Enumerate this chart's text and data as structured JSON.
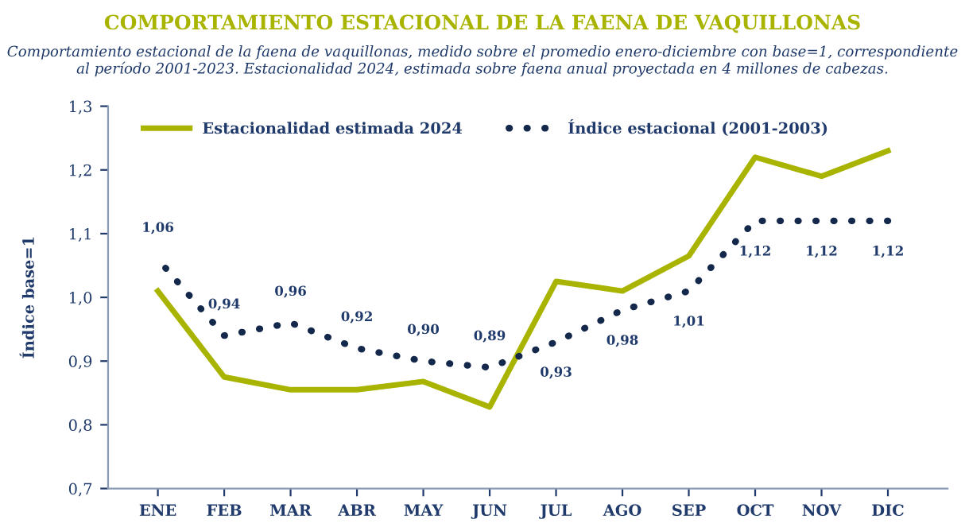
{
  "chart_data": {
    "type": "line",
    "title": "COMPORTAMIENTO ESTACIONAL DE LA FAENA DE VAQUILLONAS",
    "subtitle": "Comportamiento estacional de la faena de vaquillonas, medido sobre el promedio enero-diciembre con base=1, correspondiente al período 2001-2023. Estacionalidad 2024, estimada sobre faena anual proyectada en 4 millones de cabezas.",
    "ylabel": "Índice base=1",
    "categories": [
      "ENE",
      "FEB",
      "MAR",
      "ABR",
      "MAY",
      "JUN",
      "JUL",
      "AGO",
      "SEP",
      "OCT",
      "NOV",
      "DIC"
    ],
    "series": [
      {
        "name": "Estacionalidad estimada 2024",
        "color": "#a8b400",
        "line_style": "solid",
        "values": [
          1.01,
          0.875,
          0.855,
          0.855,
          0.868,
          0.828,
          1.025,
          1.01,
          1.065,
          1.22,
          1.19,
          1.23
        ]
      },
      {
        "name": "Índice estacional (2001-2003)",
        "color": "#14284b",
        "line_style": "dotted",
        "values": [
          1.06,
          0.94,
          0.96,
          0.92,
          0.9,
          0.89,
          0.93,
          0.98,
          1.01,
          1.12,
          1.12,
          1.12
        ],
        "value_labels": [
          "1,06",
          "0,94",
          "0,96",
          "0,92",
          "0,90",
          "0,89",
          "0,93",
          "0,98",
          "1,01",
          "1,12",
          "1,12",
          "1,12"
        ]
      }
    ],
    "ylim": [
      0.7,
      1.3
    ],
    "yticks": [
      {
        "value": 0.7,
        "label": "0,7"
      },
      {
        "value": 0.8,
        "label": "0,8"
      },
      {
        "value": 0.9,
        "label": "0,9"
      },
      {
        "value": 1.0,
        "label": "1,0"
      },
      {
        "value": 1.1,
        "label": "1,1"
      },
      {
        "value": 1.2,
        "label": "1,2"
      },
      {
        "value": 1.3,
        "label": "1,3"
      }
    ],
    "grid": false,
    "legend": "top",
    "marker": "none"
  }
}
